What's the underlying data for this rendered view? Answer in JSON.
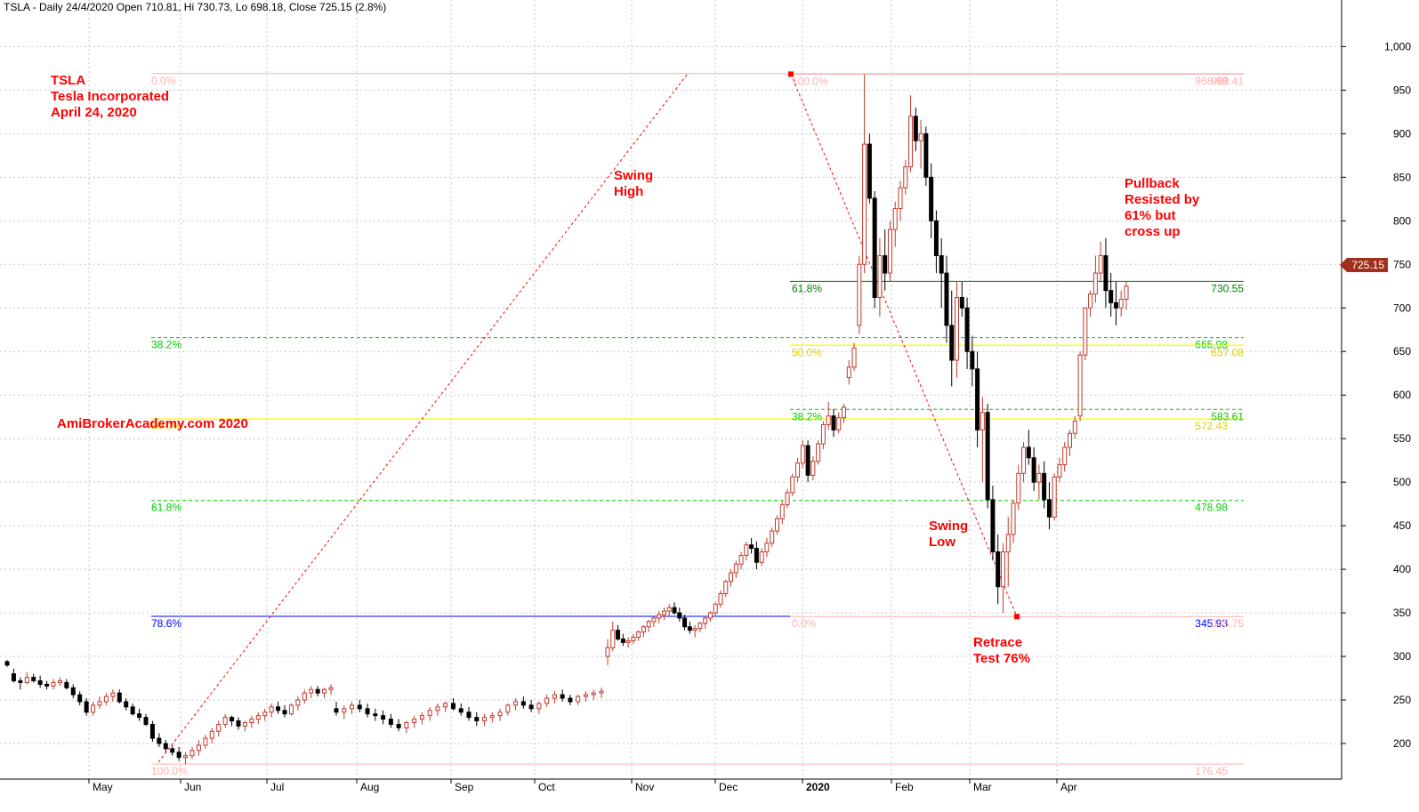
{
  "header": {
    "text": "TSLA - Daily 24/4/2020 Open 710.81, Hi 730.73, Lo 698.18, Close 725.15 (2.8%)"
  },
  "annotations": {
    "title_lines": [
      "TSLA",
      "Tesla Incorporated",
      "April 24, 2020"
    ],
    "site": "AmiBrokerAcademy.com   2020",
    "swing_high": [
      "Swing",
      "High"
    ],
    "swing_low": [
      "Swing",
      "Low"
    ],
    "retrace": [
      "Retrace",
      "Test 76%"
    ],
    "pullback": [
      "Pullback",
      "Resisted by",
      "61% but",
      "cross up"
    ]
  },
  "last_price_label": "725.15",
  "colors": {
    "up_candle": "#c0392b",
    "down_candle": "#000000",
    "grid": "#c8c8c8",
    "fib_pink": "#ffb0b0",
    "fib_green": "#00cc00",
    "fib_yellow": "#ffff00",
    "fib_blue": "#0000ff",
    "fib_dark_green": "#008000",
    "trend_red": "#ff0000",
    "annotation_red": "#ff0000",
    "price_tag": "#a0301c"
  },
  "chart_data": {
    "type": "candlestick",
    "symbol": "TSLA",
    "period": "Daily",
    "ylim": [
      150,
      1020
    ],
    "y_ticks": [
      "200",
      "250",
      "300",
      "350",
      "400",
      "450",
      "500",
      "550",
      "600",
      "650",
      "700",
      "750",
      "800",
      "850",
      "900",
      "950",
      "1,000"
    ],
    "x_labels": [
      "May",
      "Jun",
      "Jul",
      "Aug",
      "Sep",
      "Oct",
      "Nov",
      "Dec",
      "2020",
      "Feb",
      "Mar",
      "Apr"
    ],
    "grid": true,
    "last_close": 725.15,
    "fib_left": {
      "levels": [
        {
          "label": "0.0%",
          "value": 968.99,
          "color": "pink",
          "style": "solid"
        },
        {
          "label": "38.2%",
          "value": 665.98,
          "color": "green",
          "style": "dashed"
        },
        {
          "label": "50.0%",
          "value": 572.43,
          "color": "yellow",
          "style": "solid"
        },
        {
          "label": "61.8%",
          "value": 478.98,
          "color": "green",
          "style": "dashed"
        },
        {
          "label": "78.6%",
          "value": 345.93,
          "color": "blue",
          "style": "solid"
        },
        {
          "label": "100.0%",
          "value": 176.45,
          "color": "pink",
          "style": "solid"
        }
      ],
      "right_values": [
        "968.99",
        "665.98",
        "572.43",
        "478.98",
        "345.93",
        "176.45"
      ]
    },
    "fib_right": {
      "levels": [
        {
          "label": "100.0%",
          "value": 968.41,
          "color": "pink",
          "style": "solid"
        },
        {
          "label": "61.8%",
          "value": 730.55,
          "color": "dark_green",
          "style": "solid"
        },
        {
          "label": "50.0%",
          "value": 657.08,
          "color": "yellow",
          "style": "solid"
        },
        {
          "label": "38.2%",
          "value": 583.61,
          "color": "green",
          "style": "dashed"
        },
        {
          "label": "0.0%",
          "value": 345.75,
          "color": "pink",
          "style": "solid"
        }
      ],
      "right_values": [
        "968.41",
        "730.55",
        "657.08",
        "583.61",
        "345.75"
      ]
    },
    "trend_lines": [
      {
        "from": [
          "May",
          176.45
        ],
        "to": [
          "Nov",
          968.99
        ]
      },
      {
        "from": [
          "2020",
          968.41
        ],
        "to": [
          "Mar",
          345.75
        ]
      }
    ],
    "candles": [
      [
        294,
        296,
        288,
        290
      ],
      [
        280,
        286,
        270,
        272
      ],
      [
        272,
        276,
        262,
        270
      ],
      [
        270,
        282,
        268,
        276
      ],
      [
        276,
        280,
        270,
        272
      ],
      [
        272,
        278,
        264,
        268
      ],
      [
        268,
        272,
        262,
        266
      ],
      [
        266,
        274,
        262,
        270
      ],
      [
        270,
        276,
        266,
        272
      ],
      [
        270,
        274,
        262,
        264
      ],
      [
        264,
        268,
        252,
        256
      ],
      [
        256,
        260,
        244,
        248
      ],
      [
        248,
        252,
        232,
        236
      ],
      [
        236,
        248,
        232,
        244
      ],
      [
        244,
        254,
        240,
        248
      ],
      [
        248,
        258,
        244,
        254
      ],
      [
        254,
        262,
        248,
        258
      ],
      [
        258,
        262,
        246,
        248
      ],
      [
        248,
        252,
        238,
        242
      ],
      [
        242,
        246,
        232,
        234
      ],
      [
        234,
        240,
        226,
        230
      ],
      [
        230,
        234,
        220,
        222
      ],
      [
        222,
        226,
        202,
        206
      ],
      [
        206,
        212,
        196,
        200
      ],
      [
        200,
        204,
        190,
        194
      ],
      [
        194,
        198,
        186,
        190
      ],
      [
        190,
        196,
        180,
        184
      ],
      [
        184,
        190,
        176,
        186
      ],
      [
        186,
        196,
        182,
        192
      ],
      [
        192,
        204,
        186,
        198
      ],
      [
        198,
        210,
        194,
        206
      ],
      [
        206,
        218,
        200,
        214
      ],
      [
        214,
        226,
        208,
        222
      ],
      [
        222,
        234,
        218,
        230
      ],
      [
        230,
        232,
        220,
        226
      ],
      [
        226,
        230,
        216,
        220
      ],
      [
        220,
        226,
        214,
        224
      ],
      [
        224,
        232,
        218,
        228
      ],
      [
        228,
        236,
        222,
        232
      ],
      [
        232,
        240,
        226,
        236
      ],
      [
        236,
        246,
        230,
        242
      ],
      [
        242,
        248,
        234,
        238
      ],
      [
        238,
        244,
        230,
        234
      ],
      [
        234,
        246,
        232,
        244
      ],
      [
        244,
        254,
        238,
        250
      ],
      [
        250,
        262,
        246,
        258
      ],
      [
        258,
        266,
        252,
        262
      ],
      [
        262,
        266,
        254,
        258
      ],
      [
        258,
        264,
        252,
        262
      ],
      [
        262,
        268,
        256,
        264
      ],
      [
        240,
        248,
        232,
        236
      ],
      [
        236,
        244,
        228,
        240
      ],
      [
        240,
        248,
        234,
        244
      ],
      [
        244,
        250,
        236,
        240
      ],
      [
        240,
        246,
        230,
        234
      ],
      [
        234,
        240,
        226,
        232
      ],
      [
        232,
        238,
        222,
        228
      ],
      [
        228,
        234,
        218,
        222
      ],
      [
        222,
        228,
        214,
        218
      ],
      [
        218,
        226,
        212,
        224
      ],
      [
        224,
        232,
        218,
        228
      ],
      [
        228,
        236,
        222,
        232
      ],
      [
        232,
        242,
        226,
        238
      ],
      [
        238,
        246,
        232,
        242
      ],
      [
        242,
        248,
        236,
        246
      ],
      [
        246,
        252,
        238,
        240
      ],
      [
        240,
        246,
        232,
        236
      ],
      [
        236,
        242,
        226,
        230
      ],
      [
        230,
        236,
        220,
        226
      ],
      [
        226,
        234,
        220,
        230
      ],
      [
        230,
        236,
        224,
        232
      ],
      [
        232,
        240,
        226,
        236
      ],
      [
        236,
        246,
        232,
        244
      ],
      [
        244,
        252,
        238,
        248
      ],
      [
        248,
        254,
        240,
        244
      ],
      [
        244,
        250,
        236,
        240
      ],
      [
        240,
        248,
        234,
        246
      ],
      [
        246,
        256,
        242,
        252
      ],
      [
        252,
        260,
        246,
        256
      ],
      [
        256,
        262,
        248,
        252
      ],
      [
        252,
        256,
        244,
        248
      ],
      [
        248,
        256,
        244,
        254
      ],
      [
        254,
        260,
        248,
        256
      ],
      [
        256,
        262,
        250,
        258
      ],
      [
        258,
        264,
        252,
        260
      ],
      [
        300,
        320,
        290,
        310
      ],
      [
        310,
        340,
        306,
        330
      ],
      [
        330,
        336,
        318,
        320
      ],
      [
        320,
        326,
        312,
        316
      ],
      [
        316,
        322,
        310,
        318
      ],
      [
        318,
        326,
        314,
        322
      ],
      [
        322,
        330,
        318,
        328
      ],
      [
        328,
        336,
        322,
        334
      ],
      [
        334,
        342,
        328,
        340
      ],
      [
        340,
        346,
        334,
        344
      ],
      [
        344,
        352,
        338,
        348
      ],
      [
        348,
        356,
        342,
        352
      ],
      [
        352,
        360,
        346,
        356
      ],
      [
        356,
        362,
        348,
        350
      ],
      [
        350,
        356,
        340,
        344
      ],
      [
        344,
        348,
        330,
        334
      ],
      [
        334,
        340,
        326,
        330
      ],
      [
        330,
        336,
        322,
        332
      ],
      [
        332,
        340,
        328,
        338
      ],
      [
        338,
        346,
        332,
        344
      ],
      [
        344,
        352,
        340,
        350
      ],
      [
        350,
        362,
        346,
        360
      ],
      [
        360,
        376,
        356,
        372
      ],
      [
        372,
        388,
        368,
        386
      ],
      [
        386,
        400,
        380,
        396
      ],
      [
        396,
        410,
        390,
        406
      ],
      [
        406,
        420,
        400,
        416
      ],
      [
        416,
        432,
        410,
        428
      ],
      [
        428,
        436,
        418,
        424
      ],
      [
        424,
        432,
        400,
        408
      ],
      [
        408,
        424,
        404,
        420
      ],
      [
        420,
        436,
        414,
        430
      ],
      [
        430,
        448,
        426,
        444
      ],
      [
        444,
        462,
        440,
        458
      ],
      [
        458,
        478,
        452,
        474
      ],
      [
        474,
        492,
        470,
        488
      ],
      [
        488,
        510,
        484,
        506
      ],
      [
        506,
        528,
        500,
        522
      ],
      [
        522,
        548,
        516,
        542
      ],
      [
        542,
        548,
        500,
        508
      ],
      [
        508,
        530,
        502,
        524
      ],
      [
        524,
        548,
        520,
        544
      ],
      [
        544,
        570,
        538,
        566
      ],
      [
        566,
        592,
        560,
        576
      ],
      [
        576,
        584,
        552,
        560
      ],
      [
        560,
        580,
        556,
        574
      ],
      [
        574,
        590,
        568,
        586
      ],
      [
        620,
        640,
        612,
        632
      ],
      [
        632,
        660,
        628,
        654
      ],
      [
        680,
        760,
        670,
        750
      ],
      [
        750,
        968,
        740,
        888
      ],
      [
        888,
        900,
        820,
        826
      ],
      [
        826,
        834,
        700,
        712
      ],
      [
        712,
        780,
        690,
        760
      ],
      [
        760,
        790,
        720,
        740
      ],
      [
        740,
        800,
        730,
        790
      ],
      [
        790,
        822,
        770,
        814
      ],
      [
        814,
        846,
        800,
        838
      ],
      [
        838,
        870,
        830,
        862
      ],
      [
        862,
        944,
        856,
        920
      ],
      [
        920,
        930,
        880,
        892
      ],
      [
        892,
        916,
        860,
        900
      ],
      [
        900,
        908,
        840,
        850
      ],
      [
        850,
        866,
        780,
        800
      ],
      [
        800,
        812,
        740,
        760
      ],
      [
        760,
        780,
        700,
        740
      ],
      [
        740,
        760,
        660,
        680
      ],
      [
        680,
        720,
        610,
        640
      ],
      [
        640,
        730,
        620,
        712
      ],
      [
        712,
        730,
        690,
        700
      ],
      [
        700,
        712,
        630,
        650
      ],
      [
        650,
        668,
        610,
        630
      ],
      [
        630,
        650,
        540,
        560
      ],
      [
        560,
        598,
        500,
        580
      ],
      [
        580,
        590,
        470,
        480
      ],
      [
        480,
        496,
        410,
        420
      ],
      [
        420,
        440,
        360,
        380
      ],
      [
        380,
        430,
        350,
        420
      ],
      [
        420,
        460,
        380,
        440
      ],
      [
        440,
        480,
        430,
        476
      ],
      [
        476,
        520,
        468,
        510
      ],
      [
        510,
        546,
        500,
        540
      ],
      [
        540,
        560,
        520,
        528
      ],
      [
        528,
        540,
        490,
        500
      ],
      [
        500,
        520,
        480,
        510
      ],
      [
        510,
        524,
        470,
        480
      ],
      [
        480,
        500,
        446,
        460
      ],
      [
        460,
        510,
        456,
        506
      ],
      [
        506,
        528,
        500,
        520
      ],
      [
        520,
        546,
        512,
        540
      ],
      [
        540,
        560,
        530,
        556
      ],
      [
        556,
        576,
        550,
        570
      ],
      [
        576,
        650,
        570,
        646
      ],
      [
        646,
        700,
        640,
        700
      ],
      [
        700,
        720,
        690,
        716
      ],
      [
        716,
        760,
        706,
        740
      ],
      [
        740,
        776,
        730,
        760
      ],
      [
        760,
        780,
        700,
        720
      ],
      [
        720,
        740,
        690,
        706
      ],
      [
        706,
        730,
        680,
        700
      ],
      [
        700,
        720,
        690,
        710
      ],
      [
        710,
        730,
        698,
        725
      ]
    ]
  }
}
